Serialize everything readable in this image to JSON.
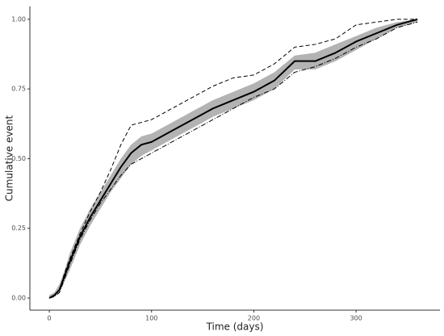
{
  "chart_data": {
    "type": "line",
    "x_label": "Time (days)",
    "y_label": "Cumulative event",
    "x": [
      0,
      5,
      10,
      15,
      20,
      30,
      40,
      50,
      60,
      70,
      80,
      90,
      100,
      120,
      140,
      160,
      180,
      200,
      220,
      240,
      260,
      280,
      300,
      320,
      340,
      360
    ],
    "band": {
      "color": "#b3b3b3",
      "lower": [
        0,
        0.005,
        0.02,
        0.06,
        0.1,
        0.19,
        0.26,
        0.32,
        0.38,
        0.43,
        0.48,
        0.51,
        0.53,
        0.57,
        0.61,
        0.65,
        0.68,
        0.71,
        0.75,
        0.82,
        0.82,
        0.85,
        0.89,
        0.93,
        0.97,
        0.99
      ],
      "upper": [
        0.01,
        0.02,
        0.05,
        0.1,
        0.16,
        0.25,
        0.32,
        0.38,
        0.44,
        0.5,
        0.55,
        0.58,
        0.59,
        0.63,
        0.67,
        0.71,
        0.74,
        0.77,
        0.81,
        0.87,
        0.88,
        0.91,
        0.94,
        0.97,
        0.99,
        1.0
      ]
    },
    "series": [
      {
        "color": "#000000",
        "width": 2,
        "dash": "none",
        "values": [
          0,
          0.01,
          0.03,
          0.08,
          0.13,
          0.22,
          0.29,
          0.35,
          0.41,
          0.47,
          0.52,
          0.55,
          0.56,
          0.6,
          0.64,
          0.68,
          0.71,
          0.74,
          0.78,
          0.85,
          0.85,
          0.88,
          0.92,
          0.95,
          0.98,
          1.0
        ]
      },
      {
        "color": "#000000",
        "width": 1,
        "dash": "5,3",
        "values": [
          0,
          0.01,
          0.03,
          0.09,
          0.14,
          0.23,
          0.31,
          0.38,
          0.46,
          0.55,
          0.62,
          0.63,
          0.64,
          0.68,
          0.72,
          0.76,
          0.79,
          0.8,
          0.84,
          0.9,
          0.91,
          0.93,
          0.98,
          0.99,
          1.0,
          1.0
        ]
      },
      {
        "color": "#000000",
        "width": 1,
        "dash": "6,2,1,2",
        "values": [
          0,
          0.005,
          0.02,
          0.07,
          0.12,
          0.21,
          0.28,
          0.34,
          0.39,
          0.44,
          0.48,
          0.5,
          0.52,
          0.56,
          0.6,
          0.64,
          0.68,
          0.72,
          0.75,
          0.81,
          0.83,
          0.86,
          0.9,
          0.93,
          0.97,
          0.99
        ]
      }
    ],
    "xlim": [
      -19,
      382
    ],
    "xticks": [
      0,
      100,
      200,
      300
    ],
    "ylim": [
      -0.0435,
      1.046
    ],
    "yticks": [
      {
        "value": 0,
        "label": "0.00"
      },
      {
        "value": 0.25,
        "label": "0.25"
      },
      {
        "value": 0.5,
        "label": "0.50"
      },
      {
        "value": 0.75,
        "label": "0.75"
      },
      {
        "value": 1,
        "label": "1.00"
      }
    ]
  }
}
